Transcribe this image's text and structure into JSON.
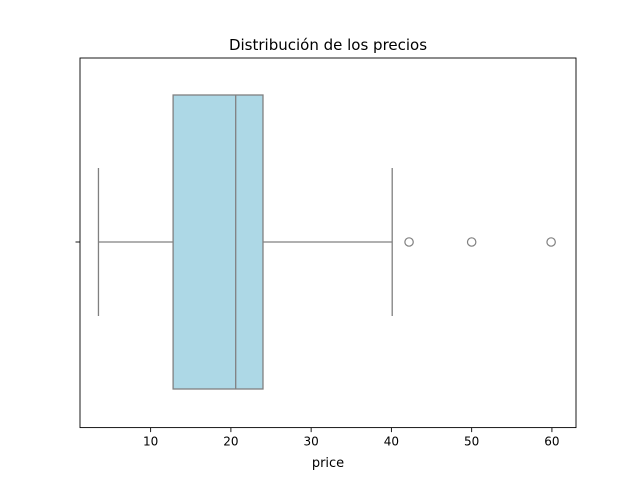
{
  "chart_data": {
    "type": "boxplot",
    "title": "Distribución de los precios",
    "xlabel": "price",
    "ylabel": "",
    "orientation": "horizontal",
    "xlim": [
      1.2,
      63
    ],
    "xticks": [
      10,
      20,
      30,
      40,
      50,
      60
    ],
    "grid": false,
    "box": {
      "whisker_low": 3.5,
      "q1": 12.8,
      "median": 20.6,
      "q3": 24.0,
      "whisker_high": 40.1
    },
    "outliers": [
      42.2,
      50.0,
      59.9
    ],
    "colors": {
      "box_fill": "#add8e6",
      "line": "#808080"
    }
  }
}
